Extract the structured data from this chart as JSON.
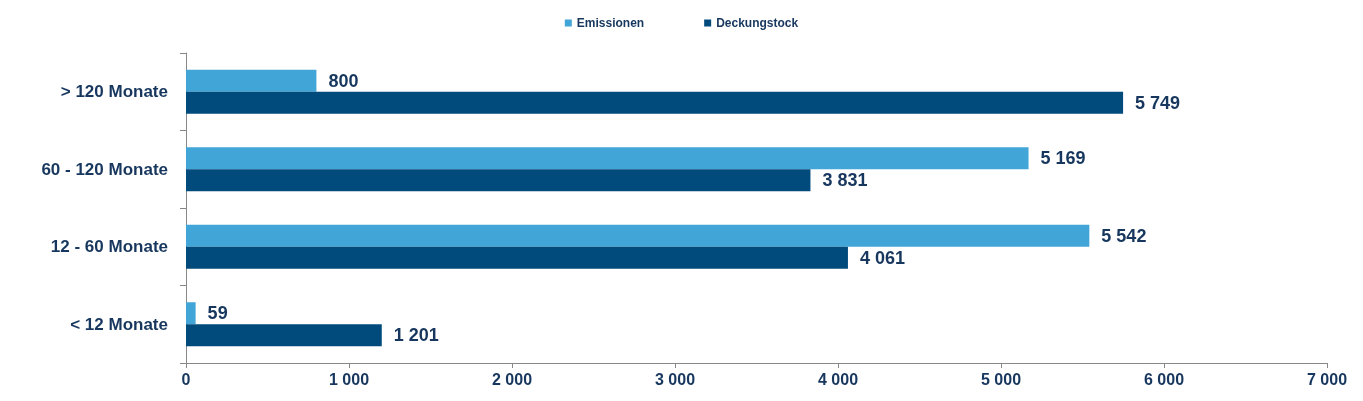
{
  "chart_data": {
    "type": "bar",
    "orientation": "horizontal",
    "categories": [
      "> 120 Monate",
      "60 - 120 Monate",
      "12 - 60 Monate",
      "< 12 Monate"
    ],
    "series": [
      {
        "name": "Emissionen",
        "color": "#41a5d8",
        "values": [
          800,
          5169,
          5542,
          59
        ],
        "value_labels": [
          "800",
          "5 169",
          "5 542",
          "59"
        ]
      },
      {
        "name": "Deckungstock",
        "color": "#004a7c",
        "values": [
          5749,
          3831,
          4061,
          1201
        ],
        "value_labels": [
          "5 749",
          "3 831",
          "4 061",
          "1 201"
        ]
      }
    ],
    "xlim": [
      0,
      7000
    ],
    "xticks": [
      0,
      {
        "value": 1000,
        "label": "1 000"
      },
      {
        "value": 2000,
        "label": "2 000"
      },
      {
        "value": 3000,
        "label": "3 000"
      },
      {
        "value": 4000,
        "label": "4 000"
      },
      {
        "value": 5000,
        "label": "5 000"
      },
      {
        "value": 6000,
        "label": "6 000"
      },
      {
        "value": 7000,
        "label": "7 000"
      }
    ],
    "legend": "top",
    "grid": false
  }
}
